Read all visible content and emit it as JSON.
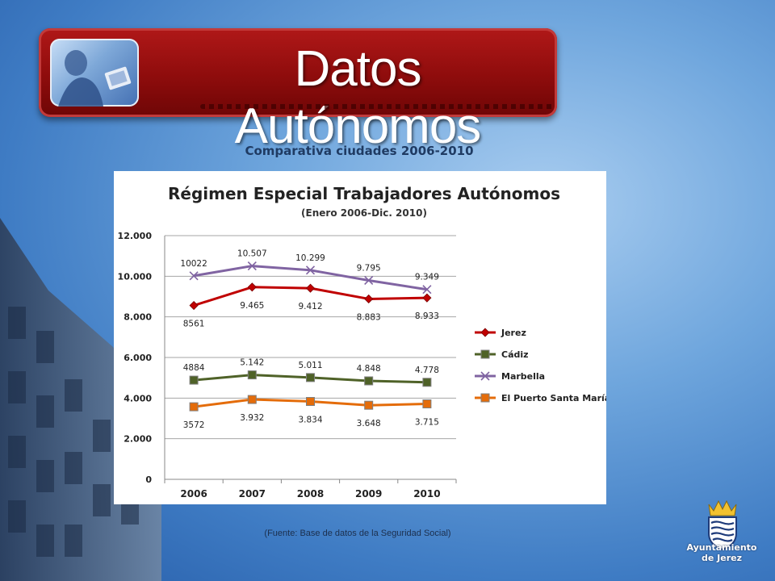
{
  "header": {
    "title": "Datos Autónomos"
  },
  "subtitle": "Comparativa ciudades 2006-2010",
  "source": "(Fuente: Base de datos de la Seguridad Social)",
  "logo": {
    "line1": "Ayuntamiento",
    "line2": "de Jerez"
  },
  "chart_data": {
    "type": "line",
    "title": "Régimen Especial Trabajadores Autónomos",
    "subtitle": "(Enero 2006-Dic. 2010)",
    "xlabel": "",
    "ylabel": "",
    "categories": [
      "2006",
      "2007",
      "2008",
      "2009",
      "2010"
    ],
    "ylim": [
      0,
      12000
    ],
    "yticks": [
      0,
      2000,
      4000,
      6000,
      8000,
      10000,
      12000
    ],
    "ytick_labels": [
      "0",
      "2.000",
      "4.000",
      "6.000",
      "8.000",
      "10.000",
      "12.000"
    ],
    "grid": true,
    "legend": "right",
    "series": [
      {
        "name": "Jerez",
        "color": "#c00000",
        "marker": "diamond",
        "values": [
          8561,
          9465,
          9412,
          8883,
          8933
        ],
        "labels": [
          "8561",
          "9.465",
          "9.412",
          "8.883",
          "8.933"
        ],
        "label_pos": "below"
      },
      {
        "name": "Cádiz",
        "color": "#4f6228",
        "marker": "square",
        "values": [
          4884,
          5142,
          5011,
          4848,
          4778
        ],
        "labels": [
          "4884",
          "5.142",
          "5.011",
          "4.848",
          "4.778"
        ],
        "label_pos": "above"
      },
      {
        "name": "Marbella",
        "color": "#8064a2",
        "marker": "x",
        "values": [
          10022,
          10507,
          10299,
          9795,
          9349
        ],
        "labels": [
          "10022",
          "10.507",
          "10.299",
          "9.795",
          "9.349"
        ],
        "label_pos": "above"
      },
      {
        "name": "El Puerto Santa María",
        "color": "#e46c0a",
        "marker": "square",
        "values": [
          3572,
          3932,
          3834,
          3648,
          3715
        ],
        "labels": [
          "3572",
          "3.932",
          "3.834",
          "3.648",
          "3.715"
        ],
        "label_pos": "below"
      }
    ]
  }
}
